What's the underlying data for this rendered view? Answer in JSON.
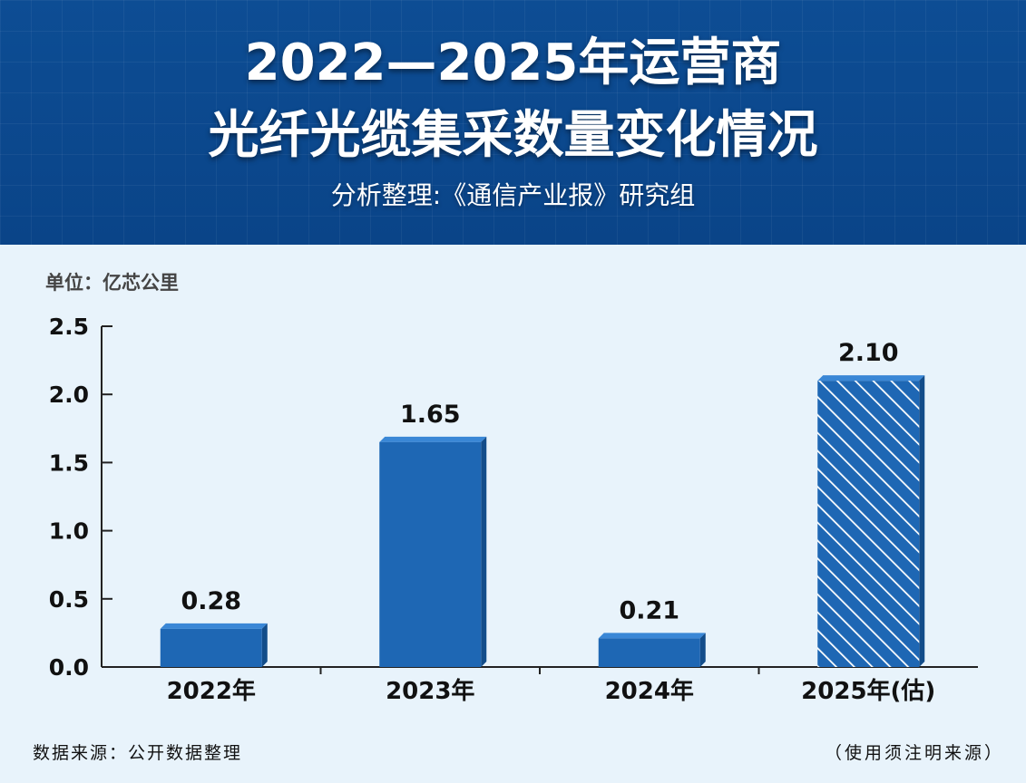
{
  "header": {
    "title_line1": "2022—2025年运营商",
    "title_line2": "光纤光缆集采数量变化情况",
    "subtitle": "分析整理:《通信产业报》研究组"
  },
  "footer": {
    "source": "数据来源：公开数据整理",
    "note": "（使用须注明来源）"
  },
  "colors": {
    "header_bg": "#0d4d94",
    "page_bg": "#e8f3fb",
    "bar": "#1e67b4",
    "bar_top": "#3a87d6",
    "bar_side": "#134d8a",
    "hatch_line": "#ffffff"
  },
  "chart_data": {
    "type": "bar",
    "categories": [
      "2022年",
      "2023年",
      "2024年",
      "2025年(估)"
    ],
    "values": [
      0.28,
      1.65,
      0.21,
      2.1
    ],
    "data_labels": [
      "0.28",
      "1.65",
      "0.21",
      "2.10"
    ],
    "estimated": [
      false,
      false,
      false,
      true
    ],
    "ylabel": "单位：亿芯公里",
    "ylim": [
      0,
      2.5
    ],
    "yticks": [
      "0.0",
      "0.5",
      "1.0",
      "1.5",
      "2.0",
      "2.5"
    ],
    "grid": false,
    "legend": "none"
  }
}
